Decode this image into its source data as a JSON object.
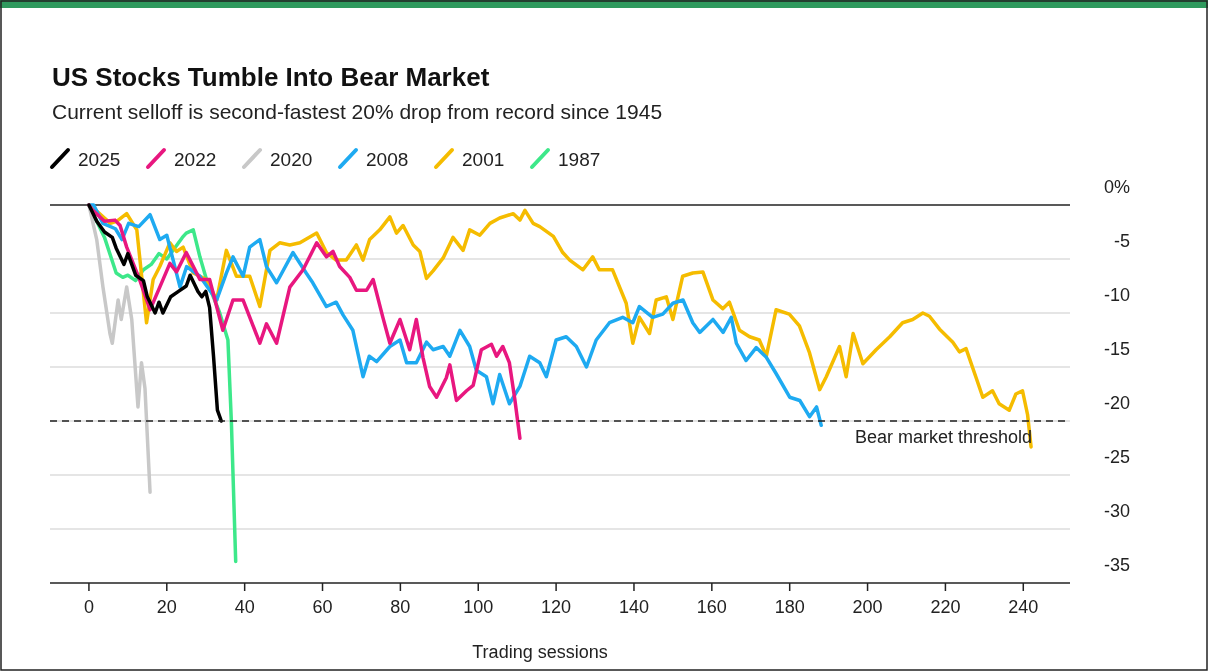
{
  "chart_data": {
    "type": "line",
    "title": "US Stocks Tumble Into Bear Market",
    "subtitle": "Current selloff is second-fastest 20% drop from record since 1945",
    "xlabel": "Trading sessions",
    "xlim": [
      -10,
      252
    ],
    "xticks": [
      0,
      20,
      40,
      60,
      80,
      100,
      120,
      140,
      160,
      180,
      200,
      220,
      240
    ],
    "ylim": [
      -35,
      0
    ],
    "yticks": [
      {
        "value": 0,
        "label": "0%"
      },
      -5,
      -10,
      -15,
      -20,
      -25,
      -30,
      -35
    ],
    "grid": "y",
    "legend": "top left",
    "line_style": "solid",
    "marker": "none",
    "ref_lines": [
      {
        "axis": "y",
        "value": -20,
        "label": "Bear market threshold",
        "line_style": "dashed",
        "color": "#222222"
      }
    ],
    "series": [
      {
        "name": "2025",
        "color": "#000000",
        "x": [
          0,
          2,
          4,
          6,
          7,
          9,
          10,
          12,
          14,
          15,
          17,
          18,
          19,
          21,
          23,
          25,
          26,
          28,
          29,
          30,
          31,
          32,
          33,
          34
        ],
        "values": [
          0,
          -1.5,
          -2.5,
          -3,
          -4,
          -5.5,
          -4.5,
          -6.5,
          -7,
          -8.5,
          -10,
          -9,
          -10,
          -8.5,
          -8,
          -7.5,
          -6.5,
          -8,
          -8.5,
          -8,
          -9.5,
          -14,
          -19,
          -20
        ]
      },
      {
        "name": "2022",
        "color": "#e8177f",
        "x": [
          0,
          1,
          4,
          6.7,
          8,
          9.7,
          13,
          15.7,
          18.2,
          20.8,
          22.5,
          25,
          28.5,
          31,
          34.4,
          37,
          39.6,
          43.9,
          45.6,
          48.2,
          51.6,
          55,
          58.5,
          61,
          62.7,
          64.4,
          67,
          68.7,
          71.3,
          73,
          75.5,
          77.3,
          79.9,
          82.4,
          84.1,
          85.8,
          87.5,
          89.3,
          91.8,
          92.7,
          94.4,
          97,
          98.7,
          100.8,
          103.4,
          104.7,
          106.3,
          108,
          109.4,
          110.7
        ],
        "values": [
          0,
          -0.5,
          -1.5,
          -1.4,
          -1.9,
          -3.9,
          -6.9,
          -9.7,
          -7.6,
          -5.4,
          -6.2,
          -4.4,
          -6.9,
          -6.9,
          -11.6,
          -8.8,
          -8.8,
          -12.8,
          -11,
          -12.8,
          -7.6,
          -6,
          -3.5,
          -4.8,
          -4.3,
          -5.7,
          -6.7,
          -7.9,
          -7.9,
          -6.9,
          -10.4,
          -12.8,
          -10.6,
          -13.4,
          -10.6,
          -14.1,
          -16.8,
          -17.8,
          -16,
          -14.8,
          -18.1,
          -17.2,
          -16.7,
          -13.4,
          -12.9,
          -14,
          -13.1,
          -14.6,
          -18,
          -21.6
        ]
      },
      {
        "name": "2020",
        "color": "#c8c8c8",
        "x": [
          0,
          2,
          3.6,
          5.4,
          6,
          7.5,
          8.3,
          9.7,
          11,
          12.6,
          13.5,
          14.4,
          15.7
        ],
        "values": [
          0,
          -3.2,
          -7.6,
          -11.9,
          -12.8,
          -8.8,
          -10.6,
          -7.6,
          -10.6,
          -18.7,
          -14.6,
          -17,
          -26.6
        ]
      },
      {
        "name": "2008",
        "color": "#1eaaf1",
        "x": [
          0,
          1.2,
          3.6,
          6.8,
          8.5,
          10.2,
          12.8,
          15.7,
          18.2,
          20,
          23.4,
          25.1,
          28.5,
          32.8,
          35.3,
          37,
          39.6,
          41.3,
          43.9,
          45.6,
          48.2,
          52.4,
          55.8,
          57.5,
          61,
          63.5,
          65.3,
          67.8,
          70.4,
          72,
          73.9,
          77.3,
          79.9,
          81.6,
          84.1,
          86.7,
          88.4,
          91,
          92.7,
          95.3,
          97.8,
          99.5,
          102.1,
          103.8,
          105.5,
          108,
          110.7,
          113.2,
          115.8,
          117.5,
          120,
          122.6,
          125.2,
          127.8,
          130.3,
          133.7,
          137.1,
          139.7,
          141.4,
          144.8,
          147.4,
          150,
          152.6,
          155.1,
          156.9,
          160.3,
          162.9,
          165,
          166.3,
          168.8,
          171.4,
          174,
          176.5,
          180,
          182.6,
          185.1,
          186.9,
          188.1
        ],
        "values": [
          0,
          0,
          -1.7,
          -2.2,
          -3.2,
          -1.7,
          -2,
          -0.9,
          -3.2,
          -2.8,
          -7.6,
          -5.7,
          -6.6,
          -8.8,
          -6.3,
          -4.8,
          -6.6,
          -3.9,
          -3.2,
          -5.7,
          -7.2,
          -4.4,
          -6.3,
          -7.2,
          -9.4,
          -9,
          -10.2,
          -11.6,
          -15.9,
          -14,
          -14.5,
          -13.1,
          -12.5,
          -14.6,
          -14.6,
          -12.7,
          -13.4,
          -13.1,
          -14,
          -11.6,
          -13.1,
          -15.3,
          -15.9,
          -18.4,
          -15.7,
          -18.4,
          -16.8,
          -14,
          -14.6,
          -15.9,
          -12.5,
          -12.2,
          -13.1,
          -15,
          -12.5,
          -10.9,
          -10.4,
          -10.9,
          -9.4,
          -10.4,
          -10.1,
          -9.1,
          -8.8,
          -10.9,
          -11.8,
          -10.6,
          -11.8,
          -10.4,
          -12.8,
          -14.4,
          -13.2,
          -14.1,
          -15.6,
          -17.8,
          -18.1,
          -19.6,
          -18.7,
          -20.4
        ]
      },
      {
        "name": "2001",
        "color": "#f5bc00",
        "x": [
          0,
          1.2,
          5.5,
          7.2,
          9.7,
          12.3,
          14.8,
          16.5,
          18.2,
          20.8,
          22.5,
          24.2,
          26.8,
          30.2,
          32.8,
          35.3,
          37.9,
          41.3,
          43.9,
          46.5,
          49,
          51.6,
          54.2,
          58.5,
          61,
          63.5,
          66.1,
          68.7,
          70.4,
          72.1,
          74.7,
          77.3,
          79,
          80.7,
          83.3,
          85,
          86.7,
          88.4,
          91,
          93.5,
          96.1,
          97.8,
          100.4,
          103,
          105.5,
          109,
          110.7,
          112,
          114.1,
          115.8,
          119.3,
          121.7,
          123.5,
          126.9,
          129.4,
          131.1,
          134.5,
          138,
          139.7,
          141.4,
          144,
          145.7,
          148.3,
          150,
          152.5,
          155.1,
          157.7,
          160.3,
          162.8,
          164.5,
          167.1,
          169.7,
          172.2,
          174,
          176.5,
          179.9,
          182.5,
          185.1,
          187.7,
          189.4,
          192.8,
          194.5,
          196.3,
          198.8,
          202.2,
          205.7,
          209,
          211.6,
          214.2,
          215.9,
          218.5,
          221.9,
          223.6,
          225.3,
          227.8,
          229.6,
          232.1,
          233.8,
          236.4,
          238.1,
          239.8,
          241.1,
          242
        ],
        "values": [
          0,
          -0.3,
          -1.7,
          -1.5,
          -0.8,
          -2.3,
          -10.9,
          -6.9,
          -5.7,
          -3.5,
          -4.3,
          -3.9,
          -6.3,
          -6.9,
          -8.8,
          -4.2,
          -6.6,
          -6.6,
          -9.4,
          -4.2,
          -3.5,
          -3.7,
          -3.5,
          -2.6,
          -4.4,
          -5.1,
          -5.1,
          -3.7,
          -5.1,
          -3.2,
          -2.3,
          -1.1,
          -2.6,
          -1.9,
          -3.7,
          -4.3,
          -6.8,
          -6.1,
          -4.9,
          -3,
          -4.2,
          -2.3,
          -2.8,
          -1.7,
          -1.2,
          -0.8,
          -1.4,
          -0.5,
          -1.7,
          -2,
          -2.9,
          -4.4,
          -5.1,
          -6,
          -4.8,
          -6,
          -6,
          -9.1,
          -12.8,
          -10.4,
          -11.9,
          -8.8,
          -8.5,
          -10.6,
          -6.6,
          -6.3,
          -6.2,
          -8.8,
          -9.6,
          -9,
          -11.6,
          -12.2,
          -12.5,
          -14,
          -9.7,
          -10.1,
          -11.2,
          -13.7,
          -17.1,
          -15.9,
          -13.1,
          -15.9,
          -11.9,
          -14.7,
          -13.4,
          -12.2,
          -10.9,
          -10.6,
          -10,
          -10.3,
          -11.5,
          -12.7,
          -13.6,
          -13.3,
          -15.9,
          -17.8,
          -17.2,
          -18.4,
          -19,
          -17.5,
          -17.2,
          -19.4,
          -22.4
        ]
      },
      {
        "name": "1987",
        "color": "#3de88a",
        "x": [
          0,
          2,
          4,
          7,
          8.7,
          10,
          12,
          14,
          16,
          18,
          20,
          22,
          24,
          25,
          26.8,
          28.5,
          30.2,
          33.6,
          35.7,
          36.6,
          37.7
        ],
        "values": [
          0,
          -1.5,
          -3,
          -6.3,
          -6.7,
          -6.5,
          -7,
          -6,
          -5.5,
          -4.5,
          -5,
          -4,
          -3,
          -2.6,
          -2.3,
          -4.8,
          -6.9,
          -10,
          -12.5,
          -20.2,
          -33
        ]
      }
    ]
  }
}
